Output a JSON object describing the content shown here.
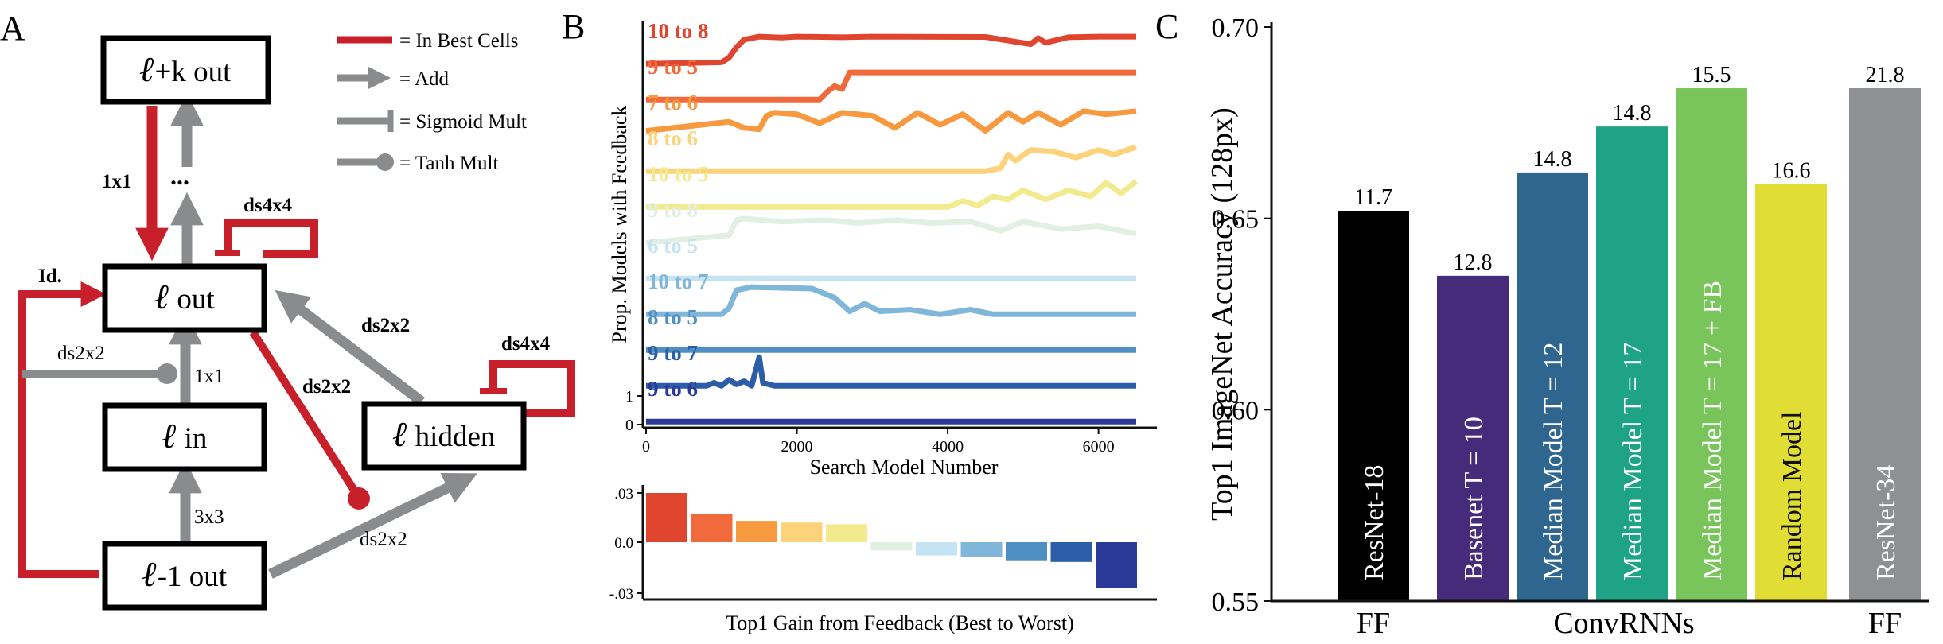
{
  "panels": {
    "a": {
      "letter": "A",
      "legend": [
        {
          "text": "= In Best Cells",
          "symbol": "red-bar"
        },
        {
          "text": "= Add",
          "symbol": "arrow"
        },
        {
          "text": "= Sigmoid Mult",
          "symbol": "tee"
        },
        {
          "text": "= Tanh Mult",
          "symbol": "dot"
        }
      ],
      "nodes": {
        "top": "+k out",
        "out": " out",
        "in": " in",
        "hidden": " hidden",
        "prev": "-1 out"
      },
      "ell": "ℓ",
      "edge_labels": {
        "onebyone_red": "1x1",
        "ellipsis": "...",
        "ds4x4_top": "ds4x4",
        "id": "Id.",
        "ds2x2_left": "ds2x2",
        "onebyone_in": "1x1",
        "ds2x2_hidden_back": "ds2x2",
        "ds2x2_red_diag": "ds2x2",
        "ds4x4_hidden": "ds4x4",
        "threebythree": "3x3",
        "ds2x2_prev": "ds2x2"
      }
    },
    "b": {
      "letter": "B",
      "colors": {
        "axis": "#111111"
      }
    },
    "c": {
      "letter": "C",
      "colors": {
        "axis": "#111111"
      }
    }
  },
  "chart_data": [
    {
      "type": "line",
      "ylabel": "Prop. Models with Feedback",
      "xlabel": "Search Model Number",
      "xlim": [
        0,
        6500
      ],
      "xticks": [
        "0",
        "2000",
        "4000",
        "6000"
      ],
      "yticks": [
        "0",
        "1"
      ],
      "series": [
        {
          "name": "10 to 8",
          "color": "#e0462f",
          "x": [
            0,
            1000,
            1100,
            1200,
            1300,
            1500,
            1800,
            2000,
            2600,
            3000,
            4500,
            5100,
            5200,
            5300,
            5600,
            6000,
            6500
          ],
          "y": [
            0.05,
            0.1,
            0.25,
            0.6,
            0.85,
            0.95,
            0.92,
            0.95,
            0.93,
            0.95,
            0.94,
            0.7,
            0.9,
            0.75,
            0.93,
            0.95,
            0.95
          ]
        },
        {
          "name": "9 to 5",
          "color": "#f06a3b",
          "x": [
            0,
            2300,
            2400,
            2500,
            2600,
            2700,
            6500
          ],
          "y": [
            0.05,
            0.05,
            0.3,
            0.5,
            0.4,
            0.95,
            0.95
          ]
        },
        {
          "name": "7 to 6",
          "color": "#f7993e",
          "x": [
            0,
            1100,
            1300,
            1500,
            1600,
            1700,
            2000,
            2300,
            2600,
            3000,
            3300,
            3600,
            3900,
            4200,
            4500,
            4800,
            5000,
            5200,
            5500,
            5800,
            6100,
            6500
          ],
          "y": [
            0.2,
            0.5,
            0.3,
            0.25,
            0.7,
            0.8,
            0.75,
            0.45,
            0.8,
            0.7,
            0.3,
            0.8,
            0.4,
            0.75,
            0.2,
            0.8,
            0.5,
            0.8,
            0.4,
            0.85,
            0.75,
            0.85
          ]
        },
        {
          "name": "8 to 6",
          "color": "#fcd37a",
          "x": [
            0,
            4500,
            4700,
            4800,
            4900,
            5100,
            5400,
            5700,
            6000,
            6200,
            6500
          ],
          "y": [
            0.05,
            0.05,
            0.15,
            0.6,
            0.4,
            0.75,
            0.7,
            0.5,
            0.75,
            0.6,
            0.85
          ]
        },
        {
          "name": "10 to 5",
          "color": "#f2ea8e",
          "x": [
            0,
            4000,
            4200,
            4400,
            4600,
            4800,
            5000,
            5300,
            5600,
            5900,
            6100,
            6300,
            6500
          ],
          "y": [
            0.05,
            0.05,
            0.25,
            0.1,
            0.4,
            0.3,
            0.6,
            0.3,
            0.6,
            0.4,
            0.85,
            0.5,
            0.9
          ]
        },
        {
          "name": "9 to 8",
          "color": "#e2efe3",
          "x": [
            0,
            1100,
            1200,
            1300,
            1800,
            2400,
            2800,
            3300,
            3800,
            4300,
            4700,
            5000,
            5500,
            6000,
            6500
          ],
          "y": [
            0.05,
            0.3,
            0.8,
            0.85,
            0.75,
            0.8,
            0.7,
            0.8,
            0.7,
            0.75,
            0.45,
            0.75,
            0.5,
            0.6,
            0.35
          ]
        },
        {
          "name": "6 to 5",
          "color": "#c5e3f2",
          "x": [
            0,
            6500
          ],
          "y": [
            0.05,
            0.05
          ]
        },
        {
          "name": "10 to 7",
          "color": "#7fb6da",
          "x": [
            0,
            1000,
            1100,
            1200,
            1400,
            2200,
            2500,
            2700,
            2900,
            3100,
            3500,
            3900,
            4300,
            4600,
            6500
          ],
          "y": [
            0.05,
            0.05,
            0.25,
            0.85,
            0.95,
            0.9,
            0.6,
            0.15,
            0.4,
            0.15,
            0.2,
            0.05,
            0.2,
            0.05,
            0.05
          ]
        },
        {
          "name": "8 to 5",
          "color": "#4f8fc4",
          "x": [
            0,
            6500
          ],
          "y": [
            0.05,
            0.05
          ]
        },
        {
          "name": "9 to 7",
          "color": "#2b5ea7",
          "x": [
            0,
            800,
            900,
            1000,
            1100,
            1200,
            1300,
            1400,
            1500,
            1550,
            1700,
            1900,
            6500
          ],
          "y": [
            0.05,
            0.05,
            0.15,
            0.05,
            0.25,
            0.1,
            0.2,
            0.05,
            1.0,
            0.15,
            0.05,
            0.05,
            0.05
          ]
        },
        {
          "name": "9 to 6",
          "color": "#2b3a99",
          "x": [
            0,
            6500
          ],
          "y": [
            0.05,
            0.05
          ]
        }
      ]
    },
    {
      "type": "bar",
      "xlabel": "Top1 Gain from Feedback (Best to Worst)",
      "yticks": [
        ".03",
        "0.0",
        "-.03"
      ],
      "ylim": [
        -0.035,
        0.035
      ],
      "values": [
        0.03,
        0.017,
        0.013,
        0.012,
        0.011,
        -0.005,
        -0.008,
        -0.009,
        -0.011,
        -0.012,
        -0.028
      ],
      "colors": [
        "#e0462f",
        "#f06a3b",
        "#f7993e",
        "#fcd37a",
        "#f2ea8e",
        "#e2efe3",
        "#c5e3f2",
        "#7fb6da",
        "#4f8fc4",
        "#2b5ea7",
        "#2b3a99"
      ]
    },
    {
      "type": "bar",
      "ylabel": "Top1 ImageNet Accuracy (128px)",
      "ylim": [
        0.55,
        0.7
      ],
      "yticks": [
        "0.55",
        "0.60",
        "0.65",
        "0.70"
      ],
      "groups": [
        "FF",
        "ConvRNNs",
        "FF"
      ],
      "bars": [
        {
          "label": "ResNet-18",
          "value": 0.652,
          "top_label": "11.7",
          "color": "#000000"
        },
        {
          "label": "Basenet  T = 10",
          "value": 0.635,
          "top_label": "12.8",
          "color": "#452b7a"
        },
        {
          "label": "Median Model  T = 12",
          "value": 0.662,
          "top_label": "14.8",
          "color": "#2f6690"
        },
        {
          "label": "Median Model  T = 17",
          "value": 0.674,
          "top_label": "14.8",
          "color": "#1fa387"
        },
        {
          "label": "Median Model  T = 17 + FB",
          "value": 0.684,
          "top_label": "15.5",
          "color": "#7ac55b"
        },
        {
          "label": "Random Model",
          "value": 0.659,
          "top_label": "16.6",
          "color": "#e0de35"
        },
        {
          "label": "ResNet-34",
          "value": 0.684,
          "top_label": "21.8",
          "color": "#8f9093"
        }
      ]
    }
  ]
}
